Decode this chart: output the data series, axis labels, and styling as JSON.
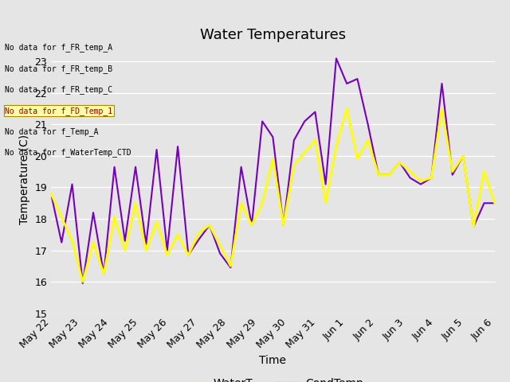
{
  "title": "Water Temperatures",
  "xlabel": "Time",
  "ylabel": "Temperature (C)",
  "ylim": [
    15.0,
    23.5
  ],
  "yticks": [
    15.0,
    16.0,
    17.0,
    18.0,
    19.0,
    20.0,
    21.0,
    22.0,
    23.0
  ],
  "background_color": "#e5e5e5",
  "water_color": "#ffff00",
  "cond_color": "#7700bb",
  "water_linewidth": 2.0,
  "cond_linewidth": 1.5,
  "title_fontsize": 13,
  "axis_fontsize": 10,
  "tick_fontsize": 9,
  "legend_fontsize": 10,
  "no_data_texts": [
    "No data for f_FR_temp_A",
    "No data for f_FR_temp_B",
    "No data for f_FR_temp_C",
    "No data for f_FD_Temp_1",
    "No data for f_Temp_A",
    "No data for f_WaterTemp_CTD"
  ],
  "xtick_labels": [
    "May 22",
    "May 23",
    "May 24",
    "May 25",
    "May 26",
    "May 27",
    "May 28",
    "May 29",
    "May 30",
    "May 31",
    "Jun 1",
    "Jun 2",
    "Jun 3",
    "Jun 4",
    "Jun 5",
    "Jun 6"
  ],
  "x_days": [
    0,
    1,
    2,
    3,
    4,
    5,
    6,
    7,
    8,
    9,
    10,
    11,
    12,
    13,
    14,
    15
  ],
  "waterT_pts": [
    18.8,
    18.05,
    17.3,
    16.0,
    17.25,
    16.25,
    18.05,
    17.0,
    18.5,
    17.0,
    17.9,
    16.85,
    17.5,
    16.85,
    17.55,
    17.8,
    17.15,
    16.5,
    18.5,
    17.8,
    18.5,
    19.9,
    17.8,
    19.7,
    20.1,
    20.5,
    18.5,
    20.3,
    21.5,
    19.9,
    20.5,
    19.4,
    19.4,
    19.8,
    19.5,
    19.2,
    19.3,
    21.5,
    19.5,
    20.0,
    17.75,
    19.5,
    18.5
  ],
  "condT_pts": [
    18.8,
    17.25,
    19.1,
    15.95,
    18.2,
    16.25,
    19.65,
    17.3,
    19.65,
    17.2,
    20.2,
    17.0,
    20.3,
    16.85,
    17.35,
    17.8,
    16.9,
    16.45,
    19.65,
    17.8,
    21.1,
    20.6,
    17.8,
    20.5,
    21.1,
    21.4,
    19.1,
    23.1,
    22.3,
    22.45,
    21.0,
    19.4,
    19.4,
    19.8,
    19.3,
    19.1,
    19.3,
    22.3,
    19.4,
    20.0,
    17.75,
    18.5,
    18.5
  ]
}
